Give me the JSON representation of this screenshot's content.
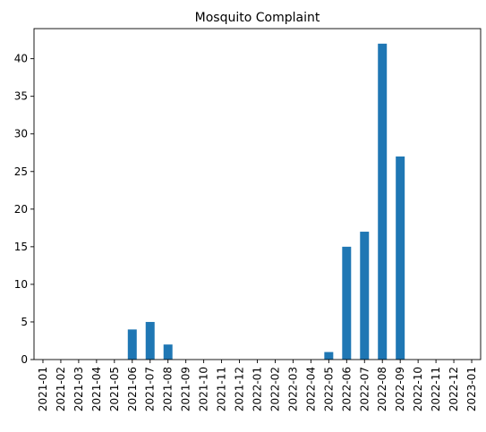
{
  "chart_data": {
    "type": "bar",
    "title": "Mosquito Complaint",
    "xlabel": "",
    "ylabel": "",
    "categories": [
      "2021-01",
      "2021-02",
      "2021-03",
      "2021-04",
      "2021-05",
      "2021-06",
      "2021-07",
      "2021-08",
      "2021-09",
      "2021-10",
      "2021-11",
      "2021-12",
      "2022-01",
      "2022-02",
      "2022-03",
      "2022-04",
      "2022-05",
      "2022-06",
      "2022-07",
      "2022-08",
      "2022-09",
      "2022-10",
      "2022-11",
      "2022-12",
      "2023-01"
    ],
    "values": [
      0,
      0,
      0,
      0,
      0,
      4,
      5,
      2,
      0,
      0,
      0,
      0,
      0,
      0,
      0,
      0,
      1,
      15,
      17,
      42,
      27,
      0,
      0,
      0,
      0
    ],
    "ylim": [
      0,
      44
    ],
    "yticks": [
      0,
      5,
      10,
      15,
      20,
      25,
      30,
      35,
      40
    ],
    "grid": false,
    "bar_color": "#1f77b4"
  }
}
